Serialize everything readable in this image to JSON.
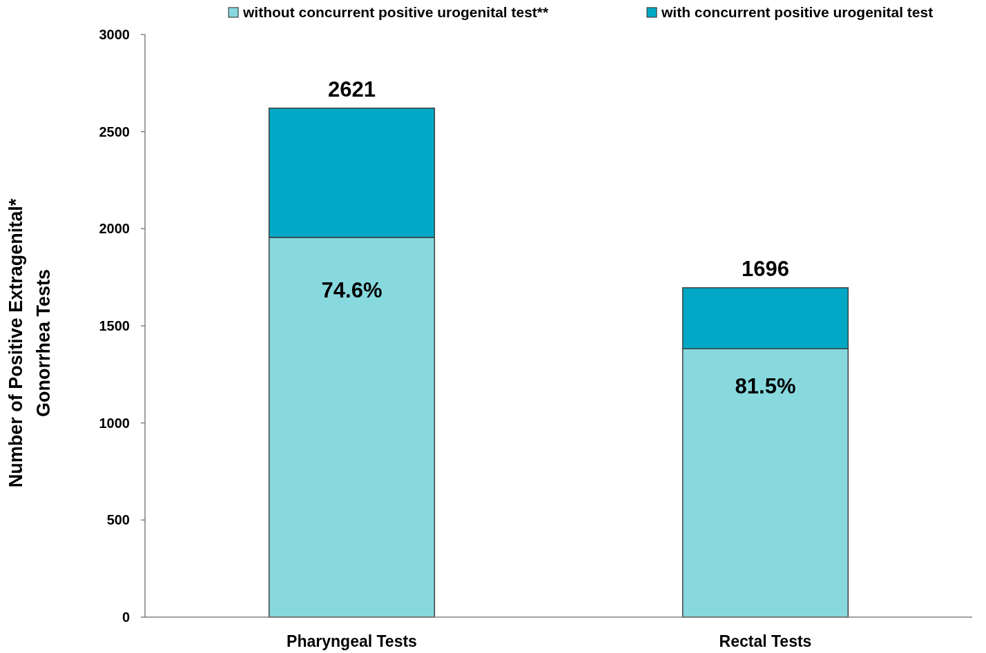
{
  "chart_data": {
    "type": "bar",
    "stacked": true,
    "categories": [
      "Pharyngeal Tests",
      "Rectal Tests"
    ],
    "series": [
      {
        "name": "without concurrent positive urogenital test**",
        "color": "#87d9de",
        "values": [
          1955,
          1382
        ]
      },
      {
        "name": "with concurrent positive urogenital test",
        "color": "#00a8c6",
        "values": [
          666,
          314
        ]
      }
    ],
    "totals": [
      "2621",
      "1696"
    ],
    "annotations": [
      "74.6%",
      "81.5%"
    ],
    "ylabel": "Number of Positive Extragenital*\nGonorrhea Tests",
    "ylim": [
      0,
      3000
    ],
    "yticks": [
      0,
      500,
      1000,
      1500,
      2000,
      2500,
      3000
    ],
    "legend": "top"
  }
}
